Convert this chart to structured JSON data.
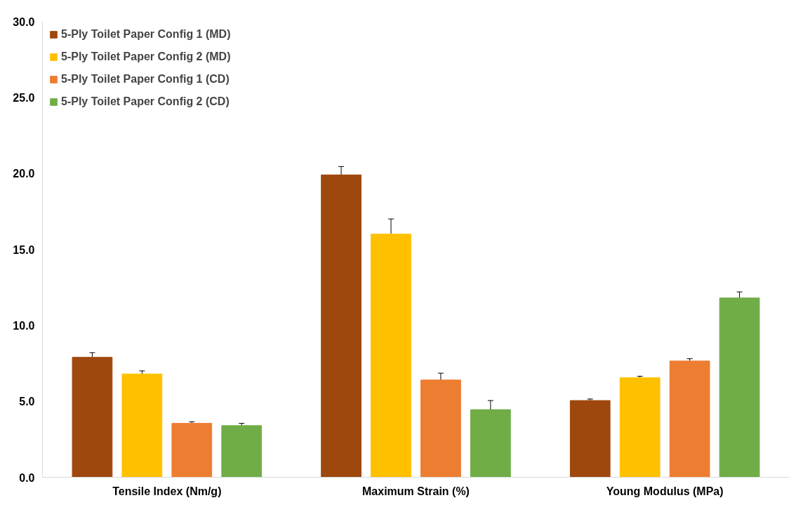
{
  "chart_data": {
    "type": "bar",
    "categories": [
      "Tensile Index (Nm/g)",
      "Maximum Strain (%)",
      "Young Modulus (MPa)"
    ],
    "series": [
      {
        "name": "5-Ply Toilet Paper Config 1 (MD)",
        "color": "#9e480e",
        "values": [
          7.9,
          19.9,
          5.05
        ],
        "errors": [
          0.3,
          0.55,
          0.1
        ]
      },
      {
        "name": "5-Ply Toilet Paper Config 2 (MD)",
        "color": "#ffc000",
        "values": [
          6.8,
          16.0,
          6.55
        ],
        "errors": [
          0.2,
          1.0,
          0.1
        ]
      },
      {
        "name": "5-Ply Toilet Paper Config 1 (CD)",
        "color": "#ed7d31",
        "values": [
          3.55,
          6.4,
          7.65
        ],
        "errors": [
          0.1,
          0.45,
          0.15
        ]
      },
      {
        "name": "5-Ply Toilet Paper Config 2 (CD)",
        "color": "#70ad47",
        "values": [
          3.4,
          4.45,
          11.8
        ],
        "errors": [
          0.15,
          0.6,
          0.4
        ]
      }
    ],
    "ylim": [
      0,
      30
    ],
    "yticks": [
      {
        "value": 0,
        "label": "0.0"
      },
      {
        "value": 5,
        "label": "5.0"
      },
      {
        "value": 10,
        "label": "10.0"
      },
      {
        "value": 15,
        "label": "15.0"
      },
      {
        "value": 20,
        "label": "20.0"
      },
      {
        "value": 25,
        "label": "25.0"
      },
      {
        "value": 30,
        "label": "30.0"
      }
    ],
    "grid": false,
    "legend": "top left"
  }
}
